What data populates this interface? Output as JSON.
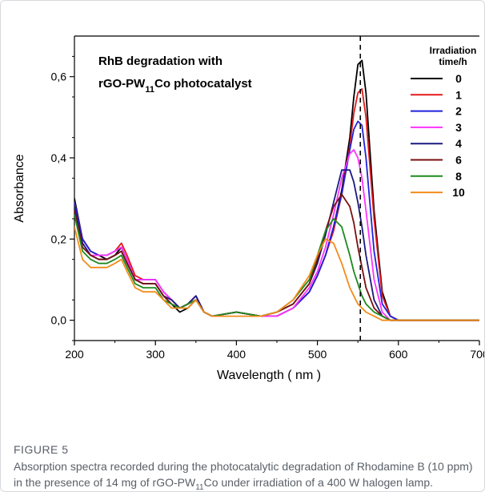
{
  "figure": {
    "label": "FIGURE 5",
    "caption_parts": [
      {
        "t": "Absorption spectra recorded during the photocatalytic degradation of Rhodamine B (10 ppm) in the presence of 14 mg of rGO-PW"
      },
      {
        "t": "11",
        "sub": true
      },
      {
        "t": "Co under irradiation of a 400 W halogen lamp."
      }
    ]
  },
  "chart_data": {
    "type": "line",
    "title_lines": [
      [
        {
          "t": "RhB degradation with"
        }
      ],
      [
        {
          "t": "rGO-PW"
        },
        {
          "t": "11",
          "sub": true
        },
        {
          "t": "Co photocatalyst"
        }
      ]
    ],
    "xlabel": "Wavelength ( nm )",
    "ylabel": "Absorbance",
    "xlim": [
      200,
      700
    ],
    "ylim": [
      -0.05,
      0.7
    ],
    "xticks": [
      200,
      300,
      400,
      500,
      600,
      700
    ],
    "xtick_labels": [
      "200",
      "300",
      "400",
      "500",
      "600",
      "700"
    ],
    "yticks": [
      0.0,
      0.2,
      0.4,
      0.6
    ],
    "ytick_labels": [
      "0,0",
      "0,2",
      "0,4",
      "0,6"
    ],
    "reference_line_x": 553,
    "legend": {
      "title_lines": [
        "Irradiation",
        "time/h"
      ],
      "position": "top-right"
    },
    "x": [
      200,
      210,
      220,
      230,
      240,
      250,
      258,
      265,
      275,
      285,
      300,
      310,
      320,
      330,
      340,
      350,
      360,
      370,
      400,
      430,
      450,
      470,
      490,
      500,
      510,
      520,
      530,
      540,
      545,
      550,
      555,
      560,
      570,
      580,
      590,
      600,
      700
    ],
    "series": [
      {
        "name": "0",
        "color": "#000000",
        "values": [
          0.3,
          0.2,
          0.17,
          0.16,
          0.15,
          0.16,
          0.18,
          0.15,
          0.1,
          0.09,
          0.09,
          0.06,
          0.04,
          0.02,
          0.03,
          0.05,
          0.02,
          0.01,
          0.02,
          0.01,
          0.01,
          0.03,
          0.07,
          0.11,
          0.16,
          0.23,
          0.32,
          0.45,
          0.55,
          0.63,
          0.64,
          0.56,
          0.27,
          0.07,
          0.01,
          0.0,
          0.0
        ]
      },
      {
        "name": "1",
        "color": "#e41a1c",
        "values": [
          0.29,
          0.2,
          0.17,
          0.16,
          0.16,
          0.17,
          0.19,
          0.16,
          0.11,
          0.1,
          0.1,
          0.07,
          0.05,
          0.03,
          0.04,
          0.06,
          0.02,
          0.01,
          0.02,
          0.01,
          0.01,
          0.03,
          0.07,
          0.11,
          0.16,
          0.22,
          0.31,
          0.43,
          0.51,
          0.56,
          0.57,
          0.5,
          0.25,
          0.06,
          0.01,
          0.0,
          0.0
        ]
      },
      {
        "name": "2",
        "color": "#2222dd",
        "values": [
          0.29,
          0.2,
          0.17,
          0.16,
          0.16,
          0.17,
          0.18,
          0.15,
          0.1,
          0.1,
          0.1,
          0.07,
          0.05,
          0.03,
          0.04,
          0.06,
          0.02,
          0.01,
          0.02,
          0.01,
          0.01,
          0.03,
          0.07,
          0.11,
          0.16,
          0.23,
          0.31,
          0.42,
          0.47,
          0.49,
          0.48,
          0.4,
          0.17,
          0.04,
          0.01,
          0.0,
          0.0
        ]
      },
      {
        "name": "3",
        "color": "#ff33ff",
        "values": [
          0.28,
          0.19,
          0.16,
          0.16,
          0.16,
          0.17,
          0.18,
          0.15,
          0.1,
          0.1,
          0.1,
          0.07,
          0.05,
          0.03,
          0.04,
          0.06,
          0.02,
          0.01,
          0.02,
          0.01,
          0.01,
          0.03,
          0.08,
          0.12,
          0.18,
          0.26,
          0.35,
          0.41,
          0.42,
          0.4,
          0.35,
          0.27,
          0.1,
          0.02,
          0.0,
          0.0,
          0.0
        ]
      },
      {
        "name": "4",
        "color": "#1a1a80",
        "values": [
          0.28,
          0.19,
          0.16,
          0.15,
          0.15,
          0.16,
          0.17,
          0.14,
          0.1,
          0.09,
          0.09,
          0.06,
          0.05,
          0.03,
          0.04,
          0.06,
          0.02,
          0.01,
          0.02,
          0.01,
          0.02,
          0.04,
          0.09,
          0.14,
          0.21,
          0.29,
          0.37,
          0.37,
          0.34,
          0.29,
          0.23,
          0.16,
          0.05,
          0.01,
          0.0,
          0.0,
          0.0
        ]
      },
      {
        "name": "6",
        "color": "#7a1010",
        "values": [
          0.27,
          0.18,
          0.16,
          0.15,
          0.15,
          0.16,
          0.17,
          0.14,
          0.1,
          0.09,
          0.09,
          0.06,
          0.04,
          0.03,
          0.04,
          0.05,
          0.02,
          0.01,
          0.02,
          0.01,
          0.02,
          0.04,
          0.09,
          0.15,
          0.22,
          0.28,
          0.31,
          0.28,
          0.24,
          0.18,
          0.13,
          0.08,
          0.03,
          0.01,
          0.0,
          0.0,
          0.0
        ]
      },
      {
        "name": "8",
        "color": "#1e8a1e",
        "values": [
          0.26,
          0.17,
          0.15,
          0.14,
          0.14,
          0.15,
          0.16,
          0.13,
          0.09,
          0.08,
          0.08,
          0.05,
          0.04,
          0.03,
          0.04,
          0.05,
          0.02,
          0.01,
          0.02,
          0.01,
          0.02,
          0.05,
          0.1,
          0.16,
          0.22,
          0.25,
          0.23,
          0.16,
          0.12,
          0.09,
          0.06,
          0.04,
          0.02,
          0.01,
          0.0,
          0.0,
          0.0
        ]
      },
      {
        "name": "10",
        "color": "#f28c1a",
        "values": [
          0.23,
          0.15,
          0.13,
          0.13,
          0.13,
          0.14,
          0.15,
          0.12,
          0.08,
          0.07,
          0.07,
          0.05,
          0.03,
          0.03,
          0.03,
          0.05,
          0.02,
          0.01,
          0.01,
          0.01,
          0.02,
          0.05,
          0.11,
          0.16,
          0.2,
          0.19,
          0.14,
          0.08,
          0.06,
          0.04,
          0.03,
          0.02,
          0.01,
          0.0,
          0.0,
          0.0,
          0.0
        ]
      }
    ]
  }
}
